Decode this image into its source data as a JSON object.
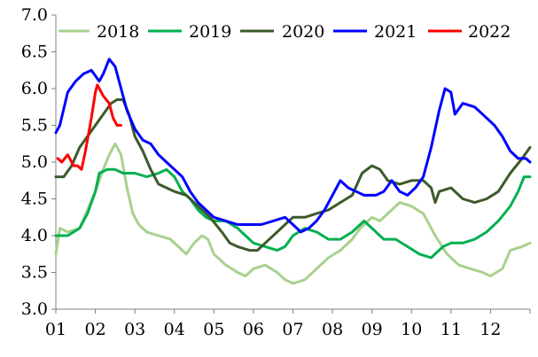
{
  "chart_data": {
    "type": "line",
    "title": "",
    "xlabel": "",
    "ylabel": "",
    "ylim": [
      3.0,
      7.0
    ],
    "xlim": [
      1,
      13
    ],
    "grid": false,
    "legend_position": "top",
    "y_ticks": [
      "3.0",
      "3.5",
      "4.0",
      "4.5",
      "5.0",
      "5.5",
      "6.0",
      "6.5",
      "7.0"
    ],
    "x_ticks": [
      "01",
      "02",
      "03",
      "04",
      "05",
      "06",
      "07",
      "08",
      "09",
      "10",
      "11",
      "12"
    ],
    "series": [
      {
        "name": "2018",
        "color": "#a9d18e",
        "points": [
          [
            1.0,
            3.75
          ],
          [
            1.1,
            4.1
          ],
          [
            1.3,
            4.05
          ],
          [
            1.6,
            4.1
          ],
          [
            1.8,
            4.35
          ],
          [
            2.0,
            4.6
          ],
          [
            2.2,
            4.9
          ],
          [
            2.35,
            5.1
          ],
          [
            2.5,
            5.25
          ],
          [
            2.65,
            5.1
          ],
          [
            2.8,
            4.65
          ],
          [
            2.95,
            4.3
          ],
          [
            3.1,
            4.15
          ],
          [
            3.3,
            4.05
          ],
          [
            3.6,
            4.0
          ],
          [
            3.9,
            3.95
          ],
          [
            4.1,
            3.85
          ],
          [
            4.3,
            3.75
          ],
          [
            4.5,
            3.9
          ],
          [
            4.7,
            4.0
          ],
          [
            4.85,
            3.95
          ],
          [
            5.0,
            3.75
          ],
          [
            5.3,
            3.6
          ],
          [
            5.6,
            3.5
          ],
          [
            5.8,
            3.45
          ],
          [
            6.0,
            3.55
          ],
          [
            6.3,
            3.6
          ],
          [
            6.6,
            3.5
          ],
          [
            6.8,
            3.4
          ],
          [
            7.0,
            3.35
          ],
          [
            7.3,
            3.4
          ],
          [
            7.6,
            3.55
          ],
          [
            7.9,
            3.7
          ],
          [
            8.2,
            3.8
          ],
          [
            8.5,
            3.95
          ],
          [
            8.7,
            4.1
          ],
          [
            9.0,
            4.25
          ],
          [
            9.2,
            4.2
          ],
          [
            9.5,
            4.35
          ],
          [
            9.7,
            4.45
          ],
          [
            10.0,
            4.4
          ],
          [
            10.3,
            4.3
          ],
          [
            10.6,
            4.0
          ],
          [
            10.9,
            3.75
          ],
          [
            11.2,
            3.6
          ],
          [
            11.5,
            3.55
          ],
          [
            11.8,
            3.5
          ],
          [
            12.0,
            3.45
          ],
          [
            12.3,
            3.55
          ],
          [
            12.5,
            3.8
          ],
          [
            12.8,
            3.85
          ],
          [
            13.0,
            3.9
          ]
        ]
      },
      {
        "name": "2019",
        "color": "#00b050",
        "points": [
          [
            1.0,
            4.0
          ],
          [
            1.3,
            4.0
          ],
          [
            1.6,
            4.1
          ],
          [
            1.8,
            4.3
          ],
          [
            2.0,
            4.6
          ],
          [
            2.1,
            4.85
          ],
          [
            2.3,
            4.9
          ],
          [
            2.5,
            4.9
          ],
          [
            2.7,
            4.85
          ],
          [
            3.0,
            4.85
          ],
          [
            3.3,
            4.8
          ],
          [
            3.6,
            4.85
          ],
          [
            3.8,
            4.9
          ],
          [
            4.0,
            4.8
          ],
          [
            4.2,
            4.6
          ],
          [
            4.4,
            4.5
          ],
          [
            4.6,
            4.35
          ],
          [
            4.8,
            4.25
          ],
          [
            5.0,
            4.2
          ],
          [
            5.3,
            4.2
          ],
          [
            5.6,
            4.1
          ],
          [
            5.8,
            4.0
          ],
          [
            6.0,
            3.9
          ],
          [
            6.3,
            3.85
          ],
          [
            6.6,
            3.8
          ],
          [
            6.8,
            3.85
          ],
          [
            7.0,
            4.0
          ],
          [
            7.3,
            4.1
          ],
          [
            7.6,
            4.05
          ],
          [
            7.9,
            3.95
          ],
          [
            8.2,
            3.95
          ],
          [
            8.5,
            4.05
          ],
          [
            8.8,
            4.2
          ],
          [
            9.0,
            4.1
          ],
          [
            9.3,
            3.95
          ],
          [
            9.6,
            3.95
          ],
          [
            9.9,
            3.85
          ],
          [
            10.2,
            3.75
          ],
          [
            10.5,
            3.7
          ],
          [
            10.8,
            3.85
          ],
          [
            11.0,
            3.9
          ],
          [
            11.3,
            3.9
          ],
          [
            11.6,
            3.95
          ],
          [
            11.9,
            4.05
          ],
          [
            12.2,
            4.2
          ],
          [
            12.5,
            4.4
          ],
          [
            12.7,
            4.6
          ],
          [
            12.85,
            4.8
          ],
          [
            13.0,
            4.8
          ]
        ]
      },
      {
        "name": "2020",
        "color": "#3c5a2a",
        "points": [
          [
            1.0,
            4.8
          ],
          [
            1.2,
            4.8
          ],
          [
            1.4,
            4.95
          ],
          [
            1.6,
            5.2
          ],
          [
            1.8,
            5.35
          ],
          [
            2.0,
            5.5
          ],
          [
            2.2,
            5.65
          ],
          [
            2.4,
            5.8
          ],
          [
            2.55,
            5.85
          ],
          [
            2.7,
            5.85
          ],
          [
            2.85,
            5.65
          ],
          [
            3.0,
            5.35
          ],
          [
            3.2,
            5.15
          ],
          [
            3.4,
            4.9
          ],
          [
            3.6,
            4.7
          ],
          [
            3.8,
            4.65
          ],
          [
            4.0,
            4.6
          ],
          [
            4.3,
            4.55
          ],
          [
            4.6,
            4.4
          ],
          [
            4.9,
            4.25
          ],
          [
            5.2,
            4.05
          ],
          [
            5.4,
            3.9
          ],
          [
            5.6,
            3.85
          ],
          [
            5.9,
            3.8
          ],
          [
            6.1,
            3.8
          ],
          [
            6.3,
            3.9
          ],
          [
            6.6,
            4.05
          ],
          [
            6.8,
            4.15
          ],
          [
            7.0,
            4.25
          ],
          [
            7.3,
            4.25
          ],
          [
            7.6,
            4.3
          ],
          [
            7.9,
            4.35
          ],
          [
            8.2,
            4.45
          ],
          [
            8.5,
            4.55
          ],
          [
            8.75,
            4.85
          ],
          [
            9.0,
            4.95
          ],
          [
            9.2,
            4.9
          ],
          [
            9.4,
            4.75
          ],
          [
            9.7,
            4.7
          ],
          [
            10.0,
            4.75
          ],
          [
            10.3,
            4.75
          ],
          [
            10.5,
            4.65
          ],
          [
            10.6,
            4.45
          ],
          [
            10.7,
            4.6
          ],
          [
            11.0,
            4.65
          ],
          [
            11.3,
            4.5
          ],
          [
            11.6,
            4.45
          ],
          [
            11.9,
            4.5
          ],
          [
            12.2,
            4.6
          ],
          [
            12.5,
            4.85
          ],
          [
            12.8,
            5.05
          ],
          [
            13.0,
            5.2
          ]
        ]
      },
      {
        "name": "2021",
        "color": "#0000ff",
        "points": [
          [
            1.0,
            5.4
          ],
          [
            1.1,
            5.5
          ],
          [
            1.3,
            5.95
          ],
          [
            1.5,
            6.1
          ],
          [
            1.7,
            6.2
          ],
          [
            1.9,
            6.25
          ],
          [
            2.1,
            6.1
          ],
          [
            2.2,
            6.2
          ],
          [
            2.35,
            6.4
          ],
          [
            2.5,
            6.3
          ],
          [
            2.65,
            6.0
          ],
          [
            2.8,
            5.7
          ],
          [
            3.0,
            5.45
          ],
          [
            3.2,
            5.3
          ],
          [
            3.4,
            5.25
          ],
          [
            3.6,
            5.1
          ],
          [
            3.8,
            5.0
          ],
          [
            4.0,
            4.9
          ],
          [
            4.2,
            4.8
          ],
          [
            4.4,
            4.6
          ],
          [
            4.6,
            4.45
          ],
          [
            4.8,
            4.35
          ],
          [
            5.0,
            4.25
          ],
          [
            5.3,
            4.2
          ],
          [
            5.6,
            4.15
          ],
          [
            5.9,
            4.15
          ],
          [
            6.2,
            4.15
          ],
          [
            6.5,
            4.2
          ],
          [
            6.8,
            4.25
          ],
          [
            7.0,
            4.15
          ],
          [
            7.2,
            4.05
          ],
          [
            7.4,
            4.1
          ],
          [
            7.6,
            4.2
          ],
          [
            7.8,
            4.35
          ],
          [
            8.0,
            4.55
          ],
          [
            8.2,
            4.75
          ],
          [
            8.4,
            4.65
          ],
          [
            8.6,
            4.6
          ],
          [
            8.8,
            4.55
          ],
          [
            9.1,
            4.55
          ],
          [
            9.3,
            4.6
          ],
          [
            9.5,
            4.75
          ],
          [
            9.7,
            4.6
          ],
          [
            9.9,
            4.55
          ],
          [
            10.1,
            4.65
          ],
          [
            10.3,
            4.8
          ],
          [
            10.5,
            5.2
          ],
          [
            10.7,
            5.7
          ],
          [
            10.85,
            6.0
          ],
          [
            11.0,
            5.95
          ],
          [
            11.1,
            5.65
          ],
          [
            11.3,
            5.8
          ],
          [
            11.6,
            5.75
          ],
          [
            11.9,
            5.6
          ],
          [
            12.1,
            5.5
          ],
          [
            12.3,
            5.35
          ],
          [
            12.5,
            5.15
          ],
          [
            12.7,
            5.05
          ],
          [
            12.9,
            5.05
          ],
          [
            13.0,
            5.0
          ]
        ]
      },
      {
        "name": "2022",
        "color": "#ff0000",
        "points": [
          [
            1.05,
            5.05
          ],
          [
            1.15,
            5.0
          ],
          [
            1.3,
            5.1
          ],
          [
            1.45,
            4.95
          ],
          [
            1.55,
            4.95
          ],
          [
            1.65,
            4.9
          ],
          [
            1.75,
            5.15
          ],
          [
            1.9,
            5.6
          ],
          [
            2.0,
            5.95
          ],
          [
            2.05,
            6.05
          ],
          [
            2.2,
            5.9
          ],
          [
            2.35,
            5.8
          ],
          [
            2.45,
            5.6
          ],
          [
            2.55,
            5.5
          ],
          [
            2.65,
            5.5
          ]
        ]
      }
    ]
  }
}
